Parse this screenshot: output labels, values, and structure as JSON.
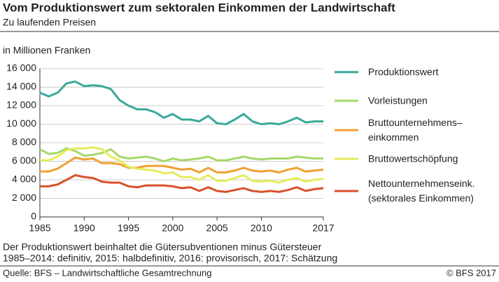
{
  "chart_data": {
    "type": "line",
    "title": "Vom Produktionswert zum sektoralen Einkommen der Landwirtschaft",
    "subtitle": "Zu laufenden Preisen",
    "y_label": "in Millionen Franken",
    "x": [
      1985,
      1986,
      1987,
      1988,
      1989,
      1990,
      1991,
      1992,
      1993,
      1994,
      1995,
      1996,
      1997,
      1998,
      1999,
      2000,
      2001,
      2002,
      2003,
      2004,
      2005,
      2006,
      2007,
      2008,
      2009,
      2010,
      2011,
      2012,
      2013,
      2014,
      2015,
      2016,
      2017
    ],
    "xlim": [
      1985,
      2017
    ],
    "xticks": [
      1985,
      1990,
      1995,
      2000,
      2005,
      2010,
      2017
    ],
    "ylim": [
      0,
      16000
    ],
    "yticks": [
      0,
      {
        "value": 2000,
        "label": "2 000"
      },
      {
        "value": 4000,
        "label": "4 000"
      },
      {
        "value": 6000,
        "label": "6 000"
      },
      {
        "value": 8000,
        "label": "8 000"
      },
      {
        "value": 10000,
        "label": "10 000"
      },
      {
        "value": 12000,
        "label": "12 000"
      },
      {
        "value": 14000,
        "label": "14 000"
      },
      {
        "value": 16000,
        "label": "16 000"
      }
    ],
    "grid": true,
    "series": [
      {
        "name": "Produktionswert",
        "color": "#3aa99a",
        "values": [
          13400,
          13000,
          13400,
          14400,
          14600,
          14100,
          14200,
          14100,
          13800,
          12600,
          12000,
          11600,
          11600,
          11300,
          10700,
          11100,
          10500,
          10500,
          10300,
          10900,
          10100,
          10000,
          10500,
          11100,
          10300,
          10000,
          10100,
          10000,
          10300,
          10700,
          10200,
          10300,
          10300
        ]
      },
      {
        "name": "Vorleistungen",
        "color": "#a6d96a",
        "values": [
          7300,
          6800,
          6900,
          7400,
          7100,
          6600,
          6700,
          6900,
          7300,
          6500,
          6300,
          6400,
          6500,
          6300,
          6000,
          6300,
          6100,
          6200,
          6300,
          6500,
          6100,
          6100,
          6300,
          6500,
          6300,
          6200,
          6300,
          6300,
          6300,
          6500,
          6400,
          6300,
          6300
        ]
      },
      {
        "name": "Bruttounternehmens–\neinkommen",
        "color": "#f0a030",
        "values": [
          4900,
          4900,
          5200,
          5800,
          6400,
          6200,
          6300,
          5800,
          5800,
          5700,
          5300,
          5300,
          5500,
          5500,
          5500,
          5300,
          5100,
          5200,
          4800,
          5300,
          4800,
          4800,
          5000,
          5300,
          5000,
          4900,
          5000,
          4800,
          5100,
          5300,
          4900,
          5000,
          5100
        ]
      },
      {
        "name": "Bruttowertschöpfung",
        "color": "#e6ec5a",
        "values": [
          6100,
          6100,
          6500,
          7200,
          7400,
          7400,
          7500,
          7300,
          6500,
          6100,
          5400,
          5200,
          5100,
          5000,
          4700,
          4800,
          4300,
          4300,
          4000,
          4500,
          3900,
          3900,
          4200,
          4500,
          3900,
          3800,
          3900,
          3700,
          4000,
          4200,
          3800,
          4000,
          4100
        ]
      },
      {
        "name": "Nettounternehmenseink.\n(sektorales Einkommen)",
        "color": "#d9512c",
        "values": [
          3300,
          3300,
          3500,
          4000,
          4500,
          4300,
          4200,
          3800,
          3700,
          3700,
          3300,
          3200,
          3400,
          3400,
          3400,
          3300,
          3100,
          3200,
          2800,
          3200,
          2800,
          2700,
          2900,
          3100,
          2800,
          2700,
          2800,
          2700,
          2900,
          3200,
          2800,
          3000,
          3100
        ]
      }
    ],
    "notes": [
      "Der Produktionswert beinhaltet die Gütersubventionen minus Gütersteuer",
      "1985–2014: definitiv, 2015: halbdefinitiv, 2016: provisorisch, 2017: Schätzung"
    ],
    "source": "Quelle: BFS – Landwirtschaftliche Gesamtrechnung",
    "copyright": "© BFS 2017"
  }
}
